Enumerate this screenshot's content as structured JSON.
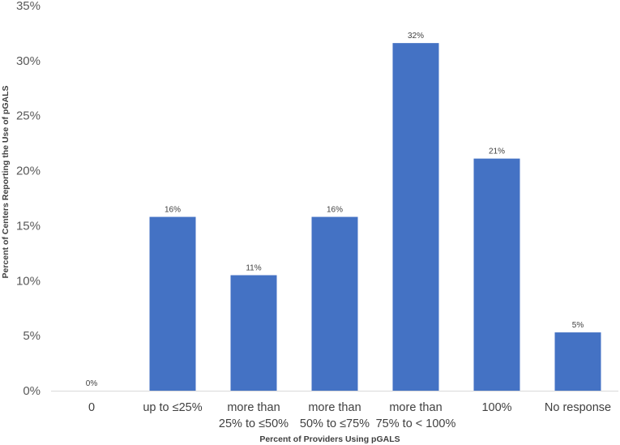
{
  "chart_data": {
    "type": "bar",
    "title": "",
    "xlabel": "Percent of Providers Using pGALS",
    "ylabel": "Percent of Centers Reporting  the Use of pGALS",
    "categories": [
      [
        "0"
      ],
      [
        "up to ≤25%"
      ],
      [
        "more than",
        "25% to ≤50%"
      ],
      [
        "more than",
        "50% to ≤75%"
      ],
      [
        "more than",
        "75% to < 100%"
      ],
      [
        "100%"
      ],
      [
        "No response"
      ]
    ],
    "values": [
      0,
      15.8,
      10.5,
      15.8,
      31.6,
      21.1,
      5.3
    ],
    "data_labels": [
      "0%",
      "16%",
      "11%",
      "16%",
      "32%",
      "21%",
      "5%"
    ],
    "ylim": [
      0,
      35
    ],
    "yticks": [
      0,
      5,
      10,
      15,
      20,
      25,
      30,
      35
    ],
    "ytick_labels": [
      "0%",
      "5%",
      "10%",
      "15%",
      "20%",
      "25%",
      "30%",
      "35%"
    ],
    "grid": false,
    "legend": "none",
    "bar_color": "#4472C4",
    "axis_color": "#D9D9D9"
  }
}
